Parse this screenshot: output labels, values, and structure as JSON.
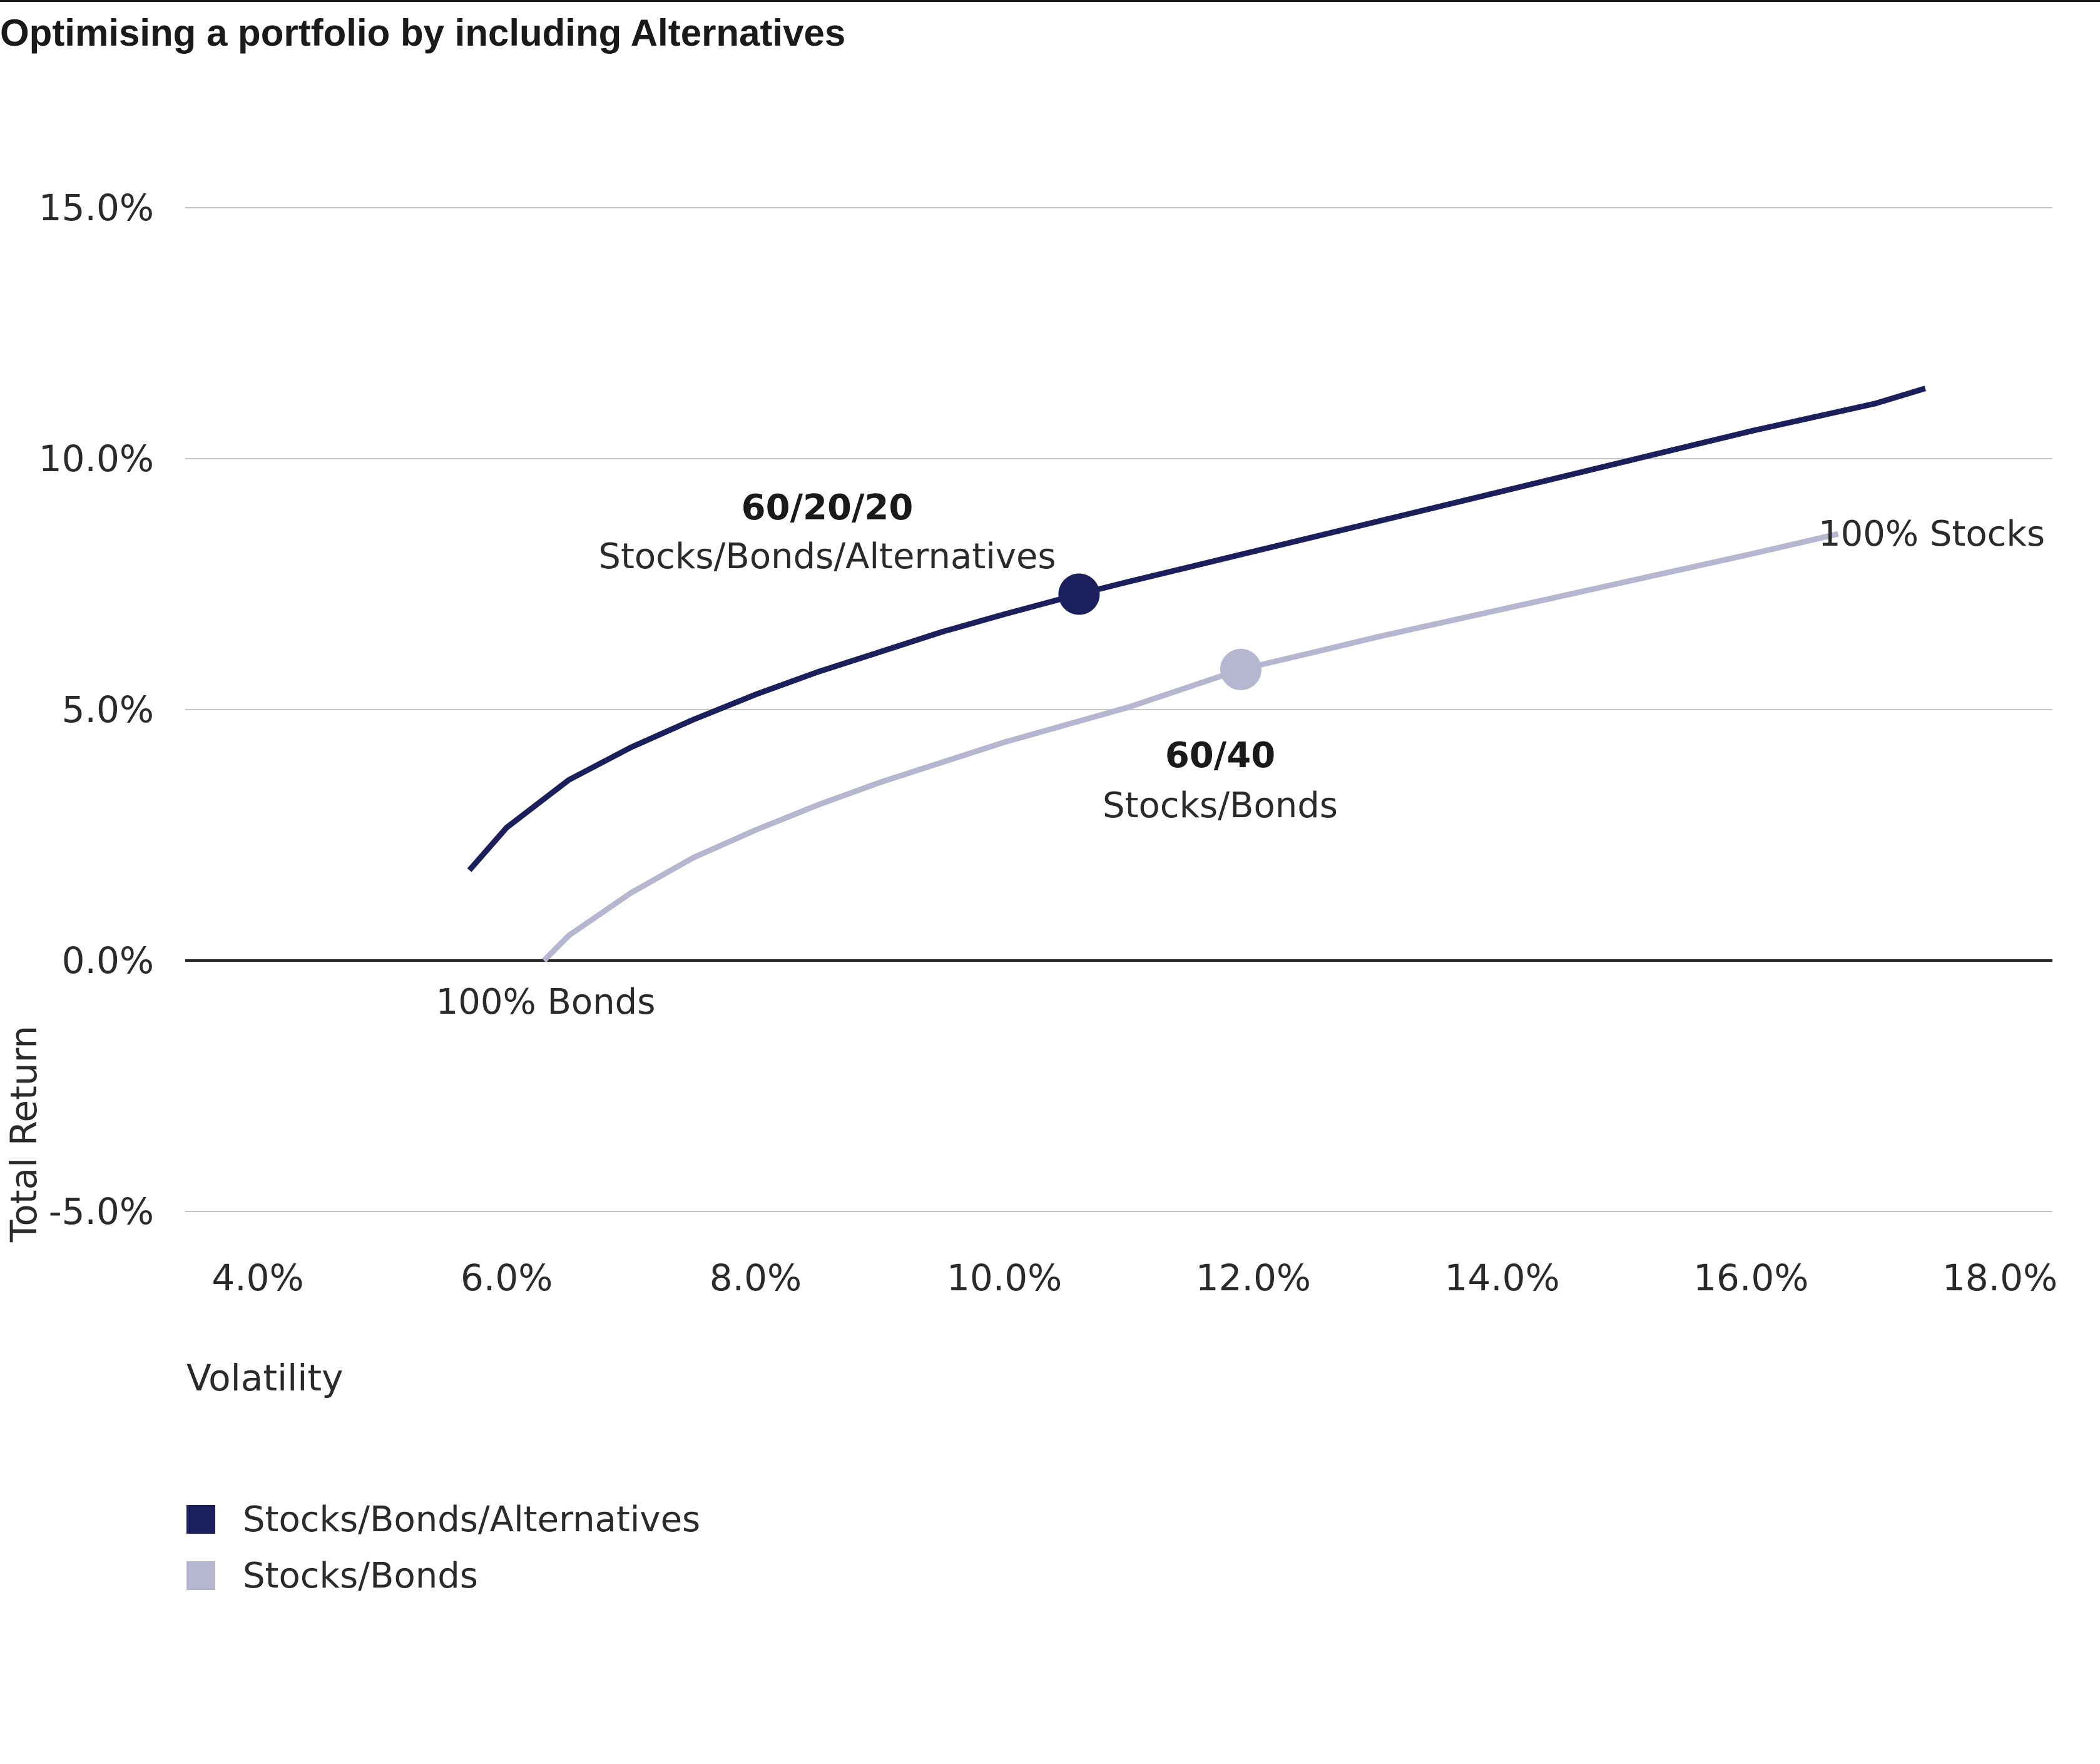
{
  "title": "Optimising a portfolio by including Alternatives",
  "chart_data": {
    "type": "line",
    "title": "Optimising a portfolio by including Alternatives",
    "xlabel": "Volatility",
    "ylabel": "Total Return",
    "xlim": [
      3.2,
      18.5
    ],
    "ylim": [
      -5.0,
      15.0
    ],
    "x_ticks": [
      4.0,
      6.0,
      8.0,
      10.0,
      12.0,
      14.0,
      16.0,
      18.0
    ],
    "x_tick_labels": [
      "4.0%",
      "6.0%",
      "8.0%",
      "10.0%",
      "12.0%",
      "14.0%",
      "16.0%",
      "18.0%"
    ],
    "y_ticks": [
      15.0,
      10.0,
      5.0,
      0.0,
      -5.0
    ],
    "y_tick_labels": [
      "15.0%",
      "10.0%",
      "5.0%",
      "0.0%",
      "-5.0%"
    ],
    "grid": true,
    "legend_position": "bottom-left",
    "series": [
      {
        "name": "Stocks/Bonds/Alternatives",
        "color": "#1b1f5c",
        "x": [
          5.7,
          6.0,
          6.5,
          7.0,
          7.5,
          8.0,
          8.5,
          9.0,
          9.5,
          10.0,
          10.6,
          11.0,
          12.0,
          13.0,
          14.0,
          15.0,
          16.0,
          17.0,
          17.4
        ],
        "y": [
          1.8,
          2.65,
          3.6,
          4.25,
          4.8,
          5.3,
          5.75,
          6.15,
          6.55,
          6.9,
          7.3,
          7.55,
          8.15,
          8.75,
          9.35,
          9.95,
          10.55,
          11.1,
          11.4
        ],
        "marker": {
          "x": 10.6,
          "y": 7.3
        }
      },
      {
        "name": "Stocks/Bonds",
        "color": "#b7b6d0",
        "x": [
          6.3,
          6.5,
          7.0,
          7.5,
          8.0,
          8.5,
          9.0,
          9.5,
          10.0,
          10.5,
          11.0,
          11.9,
          12.5,
          13.0,
          14.0,
          15.0,
          16.0,
          16.7
        ],
        "y": [
          0.0,
          0.5,
          1.35,
          2.05,
          2.6,
          3.1,
          3.55,
          3.95,
          4.35,
          4.7,
          5.05,
          5.8,
          6.15,
          6.45,
          7.0,
          7.55,
          8.1,
          8.5
        ],
        "marker": {
          "x": 11.9,
          "y": 5.8
        }
      }
    ],
    "annotations": [
      {
        "bold": "60/20/20",
        "text": "Stocks/Bonds/Alternatives"
      },
      {
        "bold": "60/40",
        "text": "Stocks/Bonds"
      },
      {
        "bold": "",
        "text": "100% Stocks"
      },
      {
        "bold": "",
        "text": "100% Bonds"
      }
    ]
  }
}
